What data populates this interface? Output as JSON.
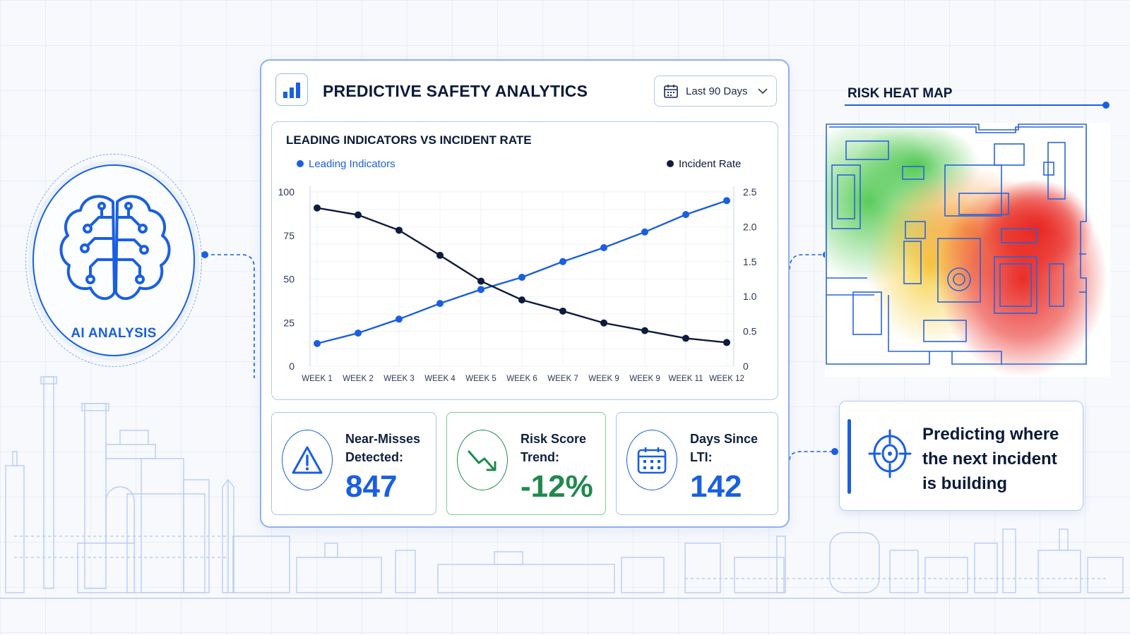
{
  "ai_panel": {
    "label": "AI ANALYSIS"
  },
  "header": {
    "title": "PREDICTIVE SAFETY ANALYTICS",
    "date_range": "Last 90 Days"
  },
  "chart_data": {
    "type": "line",
    "title": "LEADING INDICATORS VS INCIDENT RATE",
    "categories": [
      "WEEK 1",
      "WEEK 2",
      "WEEK 3",
      "WEEK 4",
      "WEEK 5",
      "WEEK 6",
      "WEEK 7",
      "WEEK 9",
      "WEEK 9",
      "WEEK 11",
      "WEEK 12"
    ],
    "series": [
      {
        "name": "Leading Indicators",
        "axis": "left",
        "color": "#1a5fe0",
        "values": [
          13,
          19,
          27,
          36,
          44,
          51,
          60,
          68,
          77,
          87,
          95
        ]
      },
      {
        "name": "Incident Rate",
        "axis": "right",
        "color": "#0d1b3e",
        "values": [
          2.27,
          2.17,
          1.95,
          1.59,
          1.22,
          0.95,
          0.79,
          0.62,
          0.51,
          0.4,
          0.34
        ]
      }
    ],
    "ylim_left": [
      0,
      100
    ],
    "ylim_right": [
      0,
      2.5
    ],
    "yticks_left": [
      "0",
      "25",
      "50",
      "75",
      "100"
    ],
    "yticks_right": [
      "0",
      "0.5",
      "1.0",
      "1.5",
      "2.0",
      "2.5"
    ],
    "grid": true,
    "legend": "top"
  },
  "stats": [
    {
      "label_line1": "Near-Misses",
      "label_line2": "Detected:",
      "value": "847",
      "icon": "warning-icon"
    },
    {
      "label_line1": "Risk Score",
      "label_line2": "Trend:",
      "value": "-12%",
      "icon": "trend-down-icon",
      "color": "#1f8a4c"
    },
    {
      "label_line1": "Days Since",
      "label_line2": "LTI:",
      "value": "142",
      "icon": "calendar-icon"
    }
  ],
  "heat_map": {
    "title": "RISK HEAT MAP",
    "levels": {
      "low": "#3cc23c",
      "medium": "#f5c518",
      "high": "#e8221c"
    }
  },
  "callout": {
    "line1": "Predicting where",
    "line2": "the next incident",
    "line3": "is building",
    "icon": "target-icon"
  },
  "colors": {
    "accent": "#1a5fe0",
    "dark": "#0d1b3e",
    "success": "#1f8a4c"
  }
}
